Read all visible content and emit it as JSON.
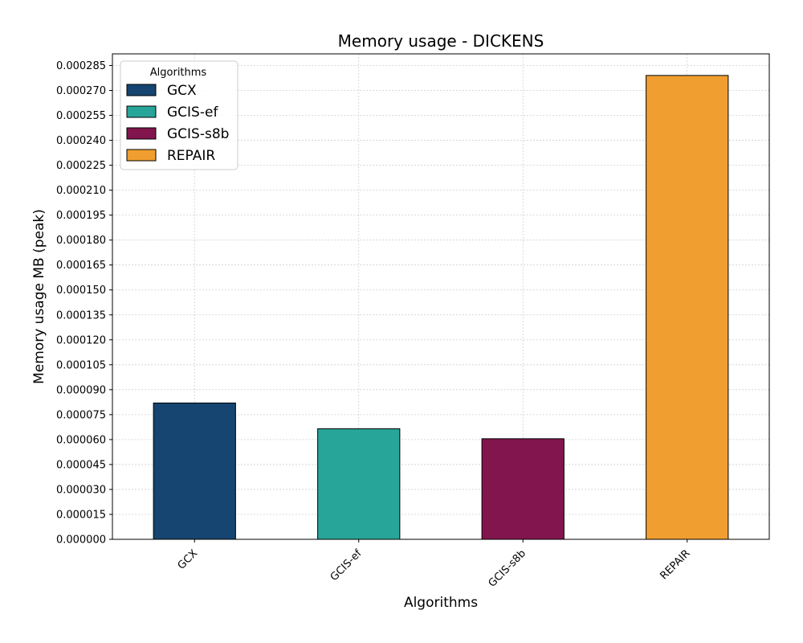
{
  "chart_data": {
    "type": "bar",
    "title": "Memory usage -  DICKENS",
    "xlabel": "Algorithms",
    "ylabel": "Memory usage MB (peak)",
    "categories": [
      "GCX",
      "GCIS-ef",
      "GCIS-s8b",
      "REPAIR"
    ],
    "values": [
      8.2e-05,
      6.65e-05,
      6.05e-05,
      0.000279
    ],
    "colors": [
      "#154570",
      "#28A599",
      "#82154D",
      "#F09E30"
    ],
    "ylim": [
      0,
      0.000292
    ],
    "yticks": [
      0,
      1.5e-05,
      3e-05,
      4.5e-05,
      6e-05,
      7.5e-05,
      9e-05,
      0.000105,
      0.00012,
      0.000135,
      0.00015,
      0.000165,
      0.00018,
      0.000195,
      0.00021,
      0.000225,
      0.00024,
      0.000255,
      0.00027,
      0.000285
    ],
    "ytick_decimals": 6,
    "grid": true,
    "legend": {
      "title": "Algorithms",
      "placement": "top-left",
      "entries": [
        "GCX",
        "GCIS-ef",
        "GCIS-s8b",
        "REPAIR"
      ]
    }
  }
}
